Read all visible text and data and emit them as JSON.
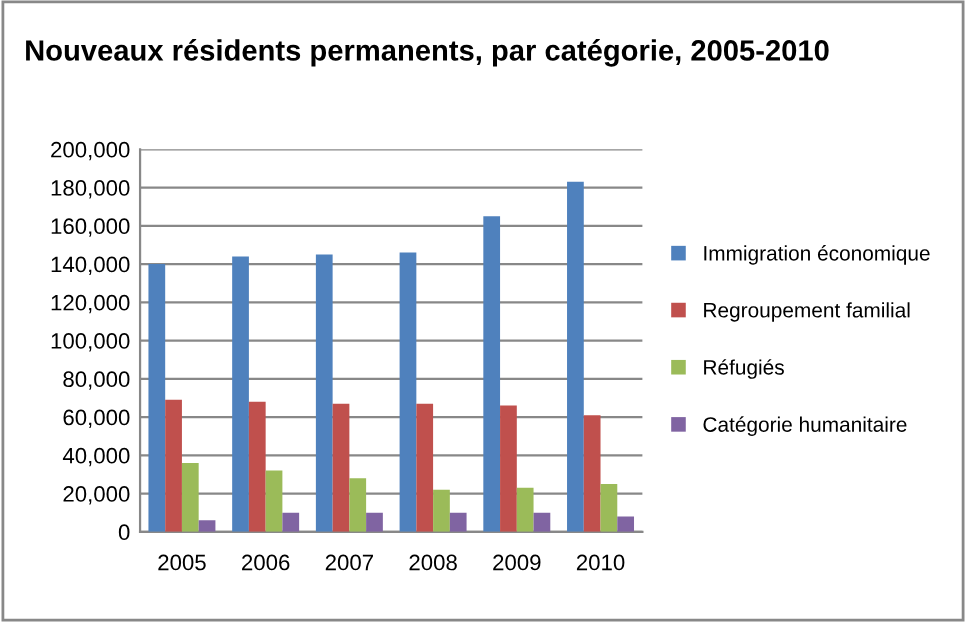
{
  "chart_data": {
    "type": "bar",
    "title": "Nouveaux résidents permanents, par catégorie, 2005-2010",
    "categories": [
      "2005",
      "2006",
      "2007",
      "2008",
      "2009",
      "2010"
    ],
    "series": [
      {
        "name": "Immigration économique",
        "color": "#4f81bd",
        "values": [
          140000,
          144000,
          145000,
          146000,
          165000,
          183000
        ]
      },
      {
        "name": "Regroupement familial",
        "color": "#c0504d",
        "values": [
          69000,
          68000,
          67000,
          67000,
          66000,
          61000
        ]
      },
      {
        "name": "Réfugiés",
        "color": "#9bbb59",
        "values": [
          36000,
          32000,
          28000,
          22000,
          23000,
          25000
        ]
      },
      {
        "name": "Catégorie humanitaire",
        "color": "#8064a2",
        "values": [
          6000,
          10000,
          10000,
          10000,
          10000,
          8000
        ]
      }
    ],
    "ylim": [
      0,
      200000
    ],
    "yticks": [
      {
        "value": 0,
        "label": "0"
      },
      {
        "value": 20000,
        "label": "20,000"
      },
      {
        "value": 40000,
        "label": "40,000"
      },
      {
        "value": 60000,
        "label": "60,000"
      },
      {
        "value": 80000,
        "label": "80,000"
      },
      {
        "value": 100000,
        "label": "100,000"
      },
      {
        "value": 120000,
        "label": "120,000"
      },
      {
        "value": 140000,
        "label": "140,000"
      },
      {
        "value": 160000,
        "label": "160,000"
      },
      {
        "value": 180000,
        "label": "180,000"
      },
      {
        "value": 200000,
        "label": "200,000"
      }
    ],
    "grid": "y",
    "legend": "right"
  }
}
